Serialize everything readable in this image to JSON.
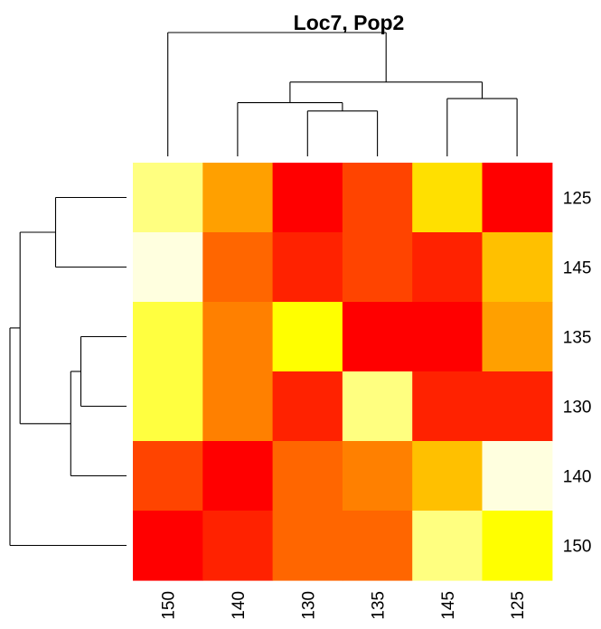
{
  "chart_data": {
    "type": "heatmap",
    "title": "Loc7, Pop2",
    "xlabel": "",
    "ylabel": "",
    "col_labels": [
      "150",
      "140",
      "130",
      "135",
      "145",
      "125"
    ],
    "row_labels": [
      "125",
      "145",
      "135",
      "130",
      "140",
      "150"
    ],
    "colors": {
      "c0": "#ff0000",
      "c1": "#ff2200",
      "c2": "#ff4400",
      "c3": "#ff6600",
      "c4": "#ff8000",
      "c5": "#ffa000",
      "c6": "#ffc000",
      "c7": "#ffe000",
      "c8": "#ffff00",
      "c9": "#ffff40",
      "c10": "#ffff80",
      "c11": "#ffffdf"
    },
    "cells": [
      [
        "c10",
        "c5",
        "c0",
        "c2",
        "c7",
        "c0"
      ],
      [
        "c11",
        "c3",
        "c1",
        "c2",
        "c1",
        "c6"
      ],
      [
        "c9",
        "c4",
        "c8",
        "c0",
        "c0",
        "c5"
      ],
      [
        "c9",
        "c4",
        "c1",
        "c10",
        "c1",
        "c1"
      ],
      [
        "c2",
        "c0",
        "c3",
        "c4",
        "c6",
        "c11"
      ],
      [
        "c0",
        "c1",
        "c3",
        "c3",
        "c10",
        "c8"
      ]
    ],
    "col_dendrogram": [
      {
        "a": 2,
        "b": 3,
        "h": 0.55
      },
      {
        "a": 1,
        "b": "m0",
        "h": 0.65
      },
      {
        "a": 4,
        "b": 5,
        "h": 0.7
      },
      {
        "a": "m1",
        "b": "m2",
        "h": 0.9
      },
      {
        "a": 0,
        "b": "m3",
        "h": 1.5
      }
    ],
    "row_dendrogram": [
      {
        "a": 2,
        "b": 3,
        "h": 0.45
      },
      {
        "a": 0,
        "b": 1,
        "h": 0.7
      },
      {
        "a": "m0",
        "b": 4,
        "h": 0.55
      },
      {
        "a": "m1",
        "b": "m2",
        "h": 1.05
      },
      {
        "a": "m3",
        "b": 5,
        "h": 1.15
      }
    ]
  }
}
